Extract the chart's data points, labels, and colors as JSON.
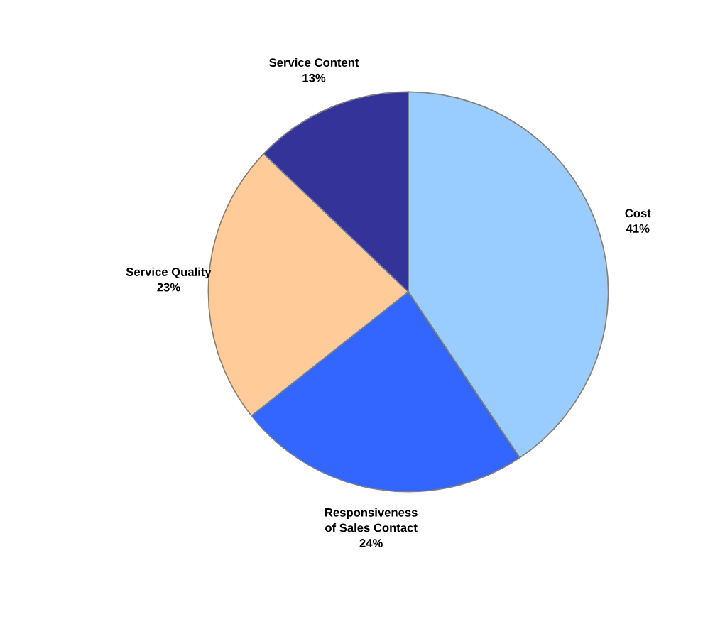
{
  "chart_data": {
    "type": "pie",
    "categories": [
      "Cost",
      "Responsiveness\nof Sales Contact",
      "Service Quality",
      "Service Content"
    ],
    "values": [
      41,
      24,
      23,
      13
    ],
    "value_labels": [
      "41%",
      "24%",
      "23%",
      "13%"
    ],
    "colors": [
      "#99ccff",
      "#3366ff",
      "#ffcc99",
      "#333399"
    ],
    "legend": false
  }
}
